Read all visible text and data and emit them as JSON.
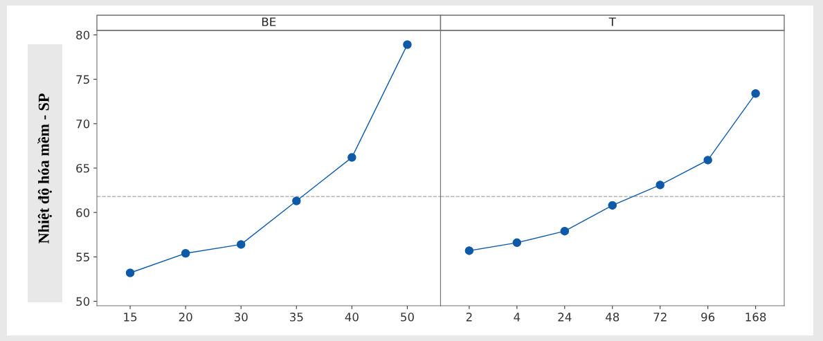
{
  "chart_data": [
    {
      "type": "line",
      "title": "BE",
      "ylabel": "Nhiệt độ hóa mềm - SP",
      "categories": [
        "15",
        "20",
        "30",
        "35",
        "40",
        "50"
      ],
      "series": [
        {
          "color": "#0f5aa8",
          "values": [
            53.2,
            55.4,
            56.4,
            61.3,
            66.2,
            78.9
          ]
        }
      ],
      "ylim": [
        49.5,
        80.5
      ],
      "yticks": [
        50,
        55,
        60,
        65,
        70,
        75,
        80
      ],
      "ref_lines": [
        {
          "axis": "y",
          "value": 61.8,
          "color": "#a6a6a6",
          "line_style": "dashed"
        }
      ],
      "marker": "circle",
      "line_style": "solid",
      "grid": false
    },
    {
      "type": "line",
      "title": "T",
      "categories": [
        "2",
        "4",
        "24",
        "48",
        "72",
        "96",
        "168"
      ],
      "series": [
        {
          "color": "#0f5aa8",
          "values": [
            55.7,
            56.6,
            57.9,
            60.8,
            63.1,
            65.9,
            73.4
          ]
        }
      ],
      "ylim": [
        49.5,
        80.5
      ],
      "yticks": [
        50,
        55,
        60,
        65,
        70,
        75,
        80
      ],
      "ref_lines": [
        {
          "axis": "y",
          "value": 61.8,
          "color": "#a6a6a6",
          "line_style": "dashed"
        }
      ],
      "marker": "circle",
      "line_style": "solid",
      "grid": false,
      "tick_labels": "x"
    }
  ]
}
